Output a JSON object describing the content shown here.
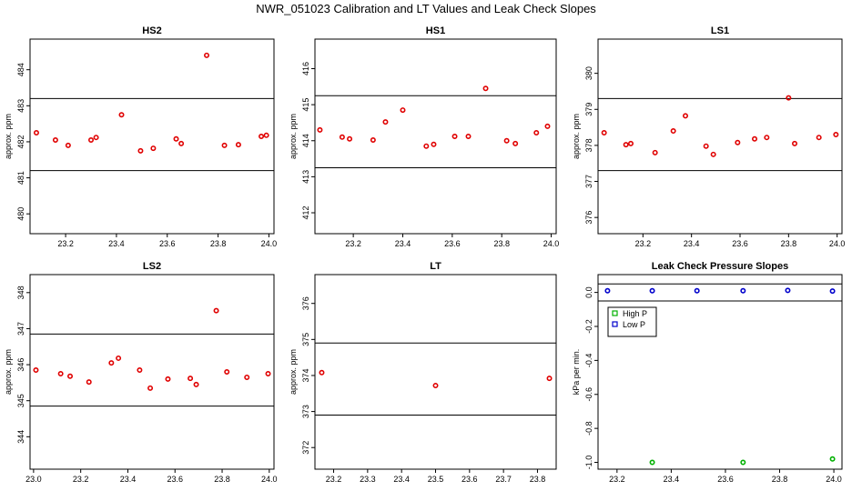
{
  "title": "NWR_051023  Calibration and LT Values and Leak Check Slopes",
  "colors": {
    "point": "#e00000",
    "high": "#00b000",
    "low": "#0000cc",
    "line": "#000000"
  },
  "chart_data": [
    {
      "type": "scatter",
      "title": "HS2",
      "ylabel": "approx. ppm",
      "xlim": [
        23.06,
        24.02
      ],
      "ylim": [
        479.45,
        484.85
      ],
      "xticks": [
        {
          "v": 23.2,
          "label": "23.2"
        },
        {
          "v": 23.4,
          "label": "23.4"
        },
        {
          "v": 23.6,
          "label": "23.6"
        },
        {
          "v": 23.8,
          "label": "23.8"
        },
        {
          "v": 24.0,
          "label": "24.0"
        }
      ],
      "yticks": [
        {
          "v": 480,
          "label": "480"
        },
        {
          "v": 481,
          "label": "481"
        },
        {
          "v": 482,
          "label": "482"
        },
        {
          "v": 483,
          "label": "483"
        },
        {
          "v": 484,
          "label": "484"
        }
      ],
      "hlines": [
        481.2,
        483.2
      ],
      "points": [
        {
          "x": 23.085,
          "y": 482.25
        },
        {
          "x": 23.16,
          "y": 482.05
        },
        {
          "x": 23.21,
          "y": 481.9
        },
        {
          "x": 23.3,
          "y": 482.05
        },
        {
          "x": 23.32,
          "y": 482.12
        },
        {
          "x": 23.42,
          "y": 482.75
        },
        {
          "x": 23.495,
          "y": 481.75
        },
        {
          "x": 23.545,
          "y": 481.82
        },
        {
          "x": 23.635,
          "y": 482.08
        },
        {
          "x": 23.655,
          "y": 481.95
        },
        {
          "x": 23.755,
          "y": 484.4
        },
        {
          "x": 23.825,
          "y": 481.9
        },
        {
          "x": 23.88,
          "y": 481.92
        },
        {
          "x": 23.97,
          "y": 482.15
        },
        {
          "x": 23.99,
          "y": 482.18
        }
      ]
    },
    {
      "type": "scatter",
      "title": "HS1",
      "ylabel": "approx. ppm",
      "xlim": [
        23.045,
        24.02
      ],
      "ylim": [
        411.42,
        416.82
      ],
      "xticks": [
        {
          "v": 23.2,
          "label": "23.2"
        },
        {
          "v": 23.4,
          "label": "23.4"
        },
        {
          "v": 23.6,
          "label": "23.6"
        },
        {
          "v": 23.8,
          "label": "23.8"
        },
        {
          "v": 24.0,
          "label": "24.0"
        }
      ],
      "yticks": [
        {
          "v": 412,
          "label": "412"
        },
        {
          "v": 413,
          "label": "413"
        },
        {
          "v": 414,
          "label": "414"
        },
        {
          "v": 415,
          "label": "415"
        },
        {
          "v": 416,
          "label": "416"
        }
      ],
      "hlines": [
        413.25,
        415.25
      ],
      "points": [
        {
          "x": 23.065,
          "y": 414.3
        },
        {
          "x": 23.155,
          "y": 414.1
        },
        {
          "x": 23.185,
          "y": 414.05
        },
        {
          "x": 23.28,
          "y": 414.02
        },
        {
          "x": 23.33,
          "y": 414.52
        },
        {
          "x": 23.4,
          "y": 414.85
        },
        {
          "x": 23.495,
          "y": 413.85
        },
        {
          "x": 23.525,
          "y": 413.9
        },
        {
          "x": 23.61,
          "y": 414.12
        },
        {
          "x": 23.665,
          "y": 414.12
        },
        {
          "x": 23.735,
          "y": 415.45
        },
        {
          "x": 23.82,
          "y": 414.0
        },
        {
          "x": 23.855,
          "y": 413.92
        },
        {
          "x": 23.94,
          "y": 414.22
        },
        {
          "x": 23.985,
          "y": 414.4
        }
      ]
    },
    {
      "type": "scatter",
      "title": "LS1",
      "ylabel": "approx. ppm",
      "xlim": [
        23.015,
        24.02
      ],
      "ylim": [
        375.55,
        380.95
      ],
      "xticks": [
        {
          "v": 23.2,
          "label": "23.2"
        },
        {
          "v": 23.4,
          "label": "23.4"
        },
        {
          "v": 23.6,
          "label": "23.6"
        },
        {
          "v": 23.8,
          "label": "23.8"
        },
        {
          "v": 24.0,
          "label": "24.0"
        }
      ],
      "yticks": [
        {
          "v": 376,
          "label": "376"
        },
        {
          "v": 377,
          "label": "377"
        },
        {
          "v": 378,
          "label": "378"
        },
        {
          "v": 379,
          "label": "379"
        },
        {
          "v": 380,
          "label": "380"
        }
      ],
      "hlines": [
        377.3,
        379.3
      ],
      "points": [
        {
          "x": 23.04,
          "y": 378.35
        },
        {
          "x": 23.13,
          "y": 378.02
        },
        {
          "x": 23.15,
          "y": 378.05
        },
        {
          "x": 23.25,
          "y": 377.8
        },
        {
          "x": 23.325,
          "y": 378.4
        },
        {
          "x": 23.375,
          "y": 378.82
        },
        {
          "x": 23.46,
          "y": 377.98
        },
        {
          "x": 23.49,
          "y": 377.75
        },
        {
          "x": 23.59,
          "y": 378.08
        },
        {
          "x": 23.66,
          "y": 378.18
        },
        {
          "x": 23.71,
          "y": 378.22
        },
        {
          "x": 23.8,
          "y": 379.32
        },
        {
          "x": 23.825,
          "y": 378.05
        },
        {
          "x": 23.925,
          "y": 378.22
        },
        {
          "x": 23.995,
          "y": 378.3
        }
      ]
    },
    {
      "type": "scatter",
      "title": "LS2",
      "ylabel": "approx. ppm",
      "xlim": [
        22.985,
        24.02
      ],
      "ylim": [
        343.1,
        348.5
      ],
      "xticks": [
        {
          "v": 23.0,
          "label": "23.0"
        },
        {
          "v": 23.2,
          "label": "23.2"
        },
        {
          "v": 23.4,
          "label": "23.4"
        },
        {
          "v": 23.6,
          "label": "23.6"
        },
        {
          "v": 23.8,
          "label": "23.8"
        },
        {
          "v": 24.0,
          "label": "24.0"
        }
      ],
      "yticks": [
        {
          "v": 344,
          "label": "344"
        },
        {
          "v": 345,
          "label": "345"
        },
        {
          "v": 346,
          "label": "346"
        },
        {
          "v": 347,
          "label": "347"
        },
        {
          "v": 348,
          "label": "348"
        }
      ],
      "hlines": [
        344.85,
        346.85
      ],
      "points": [
        {
          "x": 23.01,
          "y": 345.85
        },
        {
          "x": 23.115,
          "y": 345.75
        },
        {
          "x": 23.155,
          "y": 345.68
        },
        {
          "x": 23.235,
          "y": 345.52
        },
        {
          "x": 23.33,
          "y": 346.05
        },
        {
          "x": 23.36,
          "y": 346.18
        },
        {
          "x": 23.45,
          "y": 345.85
        },
        {
          "x": 23.495,
          "y": 345.35
        },
        {
          "x": 23.57,
          "y": 345.6
        },
        {
          "x": 23.665,
          "y": 345.62
        },
        {
          "x": 23.69,
          "y": 345.45
        },
        {
          "x": 23.775,
          "y": 347.5
        },
        {
          "x": 23.82,
          "y": 345.8
        },
        {
          "x": 23.905,
          "y": 345.65
        },
        {
          "x": 23.995,
          "y": 345.75
        }
      ]
    },
    {
      "type": "scatter",
      "title": "LT",
      "ylabel": "approx. ppm",
      "xlim": [
        23.145,
        23.855
      ],
      "ylim": [
        371.4,
        376.8
      ],
      "xticks": [
        {
          "v": 23.2,
          "label": "23.2"
        },
        {
          "v": 23.3,
          "label": "23.3"
        },
        {
          "v": 23.4,
          "label": "23.4"
        },
        {
          "v": 23.5,
          "label": "23.5"
        },
        {
          "v": 23.6,
          "label": "23.6"
        },
        {
          "v": 23.7,
          "label": "23.7"
        },
        {
          "v": 23.8,
          "label": "23.8"
        }
      ],
      "yticks": [
        {
          "v": 372,
          "label": "372"
        },
        {
          "v": 373,
          "label": "373"
        },
        {
          "v": 374,
          "label": "374"
        },
        {
          "v": 375,
          "label": "375"
        },
        {
          "v": 376,
          "label": "376"
        }
      ],
      "hlines": [
        372.9,
        374.9
      ],
      "points": [
        {
          "x": 23.165,
          "y": 374.08
        },
        {
          "x": 23.5,
          "y": 373.72
        },
        {
          "x": 23.835,
          "y": 373.92
        }
      ]
    },
    {
      "type": "scatter",
      "title": "Leak Check Pressure Slopes",
      "ylabel": "kPa per min.",
      "xlim": [
        23.13,
        24.03
      ],
      "ylim": [
        -1.04,
        0.105
      ],
      "xticks": [
        {
          "v": 23.2,
          "label": "23.2"
        },
        {
          "v": 23.4,
          "label": "23.4"
        },
        {
          "v": 23.6,
          "label": "23.6"
        },
        {
          "v": 23.8,
          "label": "23.8"
        },
        {
          "v": 24.0,
          "label": "24.0"
        }
      ],
      "yticks": [
        {
          "v": 0.0,
          "label": "0.0"
        },
        {
          "v": -0.2,
          "label": "-0.2"
        },
        {
          "v": -0.4,
          "label": "-0.4"
        },
        {
          "v": -0.6,
          "label": "-0.6"
        },
        {
          "v": -0.8,
          "label": "-0.8"
        },
        {
          "v": -1.0,
          "label": "-1.0"
        }
      ],
      "hlines": [
        -0.05,
        0.05
      ],
      "legend": {
        "position": "top-left",
        "entries": [
          {
            "name": "High P",
            "color": "#00b000"
          },
          {
            "name": "Low P",
            "color": "#0000cc"
          }
        ]
      },
      "series": [
        {
          "name": "High P",
          "color": "#00b000",
          "points": [
            {
              "x": 23.33,
              "y": -1.0
            },
            {
              "x": 23.665,
              "y": -1.0
            },
            {
              "x": 23.995,
              "y": -0.98
            }
          ]
        },
        {
          "name": "Low P",
          "color": "#0000cc",
          "points": [
            {
              "x": 23.165,
              "y": 0.01
            },
            {
              "x": 23.33,
              "y": 0.01
            },
            {
              "x": 23.495,
              "y": 0.01
            },
            {
              "x": 23.665,
              "y": 0.01
            },
            {
              "x": 23.83,
              "y": 0.012
            },
            {
              "x": 23.995,
              "y": 0.008
            }
          ]
        }
      ]
    }
  ]
}
